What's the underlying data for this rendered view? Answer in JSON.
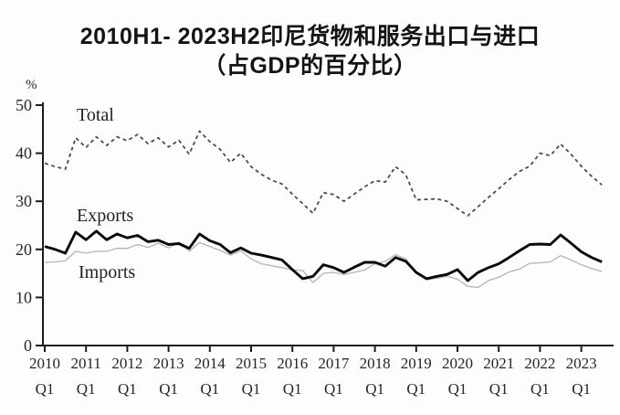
{
  "title": {
    "line1": "2010H1- 2023H2印尼货物和服务出口与进口",
    "line2": "（占GDP的百分比）"
  },
  "y_axis": {
    "unit": "%",
    "ticks": [
      "0",
      "10",
      "20",
      "30",
      "40",
      "50"
    ]
  },
  "x_axis": {
    "tick_years": [
      "2010",
      "2011",
      "2012",
      "2013",
      "2014",
      "2015",
      "2016",
      "2017",
      "2018",
      "2019",
      "2020",
      "2021",
      "2022",
      "2023"
    ],
    "tick_sublabel": "Q1"
  },
  "colors": {
    "title_text": "#141414",
    "axis": "#1c1c1c",
    "tick_text": "#262626",
    "total_line": "#4d4d4d",
    "exports_line": "#0a0a0a",
    "imports_line": "#b3b3b3",
    "background": "#fdfdfd"
  },
  "chart_data": {
    "type": "line",
    "title": "2010H1- 2023H2印尼货物和服务出口与进口（占GDP的百分比）",
    "xlabel": "",
    "ylabel": "%",
    "ylim": [
      0,
      50
    ],
    "grid": false,
    "frequency": "quarterly",
    "x_start": "2010 Q1",
    "x_end": "2023 H2",
    "x_tick_labels": [
      "2010 Q1",
      "2011 Q1",
      "2012 Q1",
      "2013 Q1",
      "2014 Q1",
      "2015 Q1",
      "2016 Q1",
      "2017 Q1",
      "2018 Q1",
      "2019 Q1",
      "2020 Q1",
      "2021 Q1",
      "2022 Q1",
      "2023 Q1"
    ],
    "series": [
      {
        "name": "Total",
        "line_style": "dashed",
        "color": "#4d4d4d",
        "values": [
          37.9,
          37.2,
          36.7,
          43.2,
          41.2,
          43.4,
          41.6,
          43.4,
          42.6,
          43.9,
          42.0,
          43.2,
          41.3,
          42.7,
          39.8,
          44.6,
          42.4,
          40.8,
          38.1,
          40.0,
          37.2,
          35.6,
          34.4,
          33.6,
          31.5,
          29.5,
          27.5,
          31.8,
          31.4,
          30.0,
          31.5,
          33.0,
          34.3,
          34.0,
          37.2,
          35.5,
          30.3,
          30.4,
          30.5,
          30.0,
          28.5,
          27.0,
          28.9,
          30.8,
          32.6,
          34.5,
          36.2,
          37.3,
          40.0,
          39.5,
          41.9,
          39.8,
          37.3,
          35.2,
          33.4
        ]
      },
      {
        "name": "Exports",
        "line_style": "solid-thick",
        "color": "#0a0a0a",
        "values": [
          20.6,
          20.0,
          19.2,
          23.6,
          22.0,
          23.8,
          22.0,
          23.2,
          22.4,
          22.9,
          21.6,
          21.9,
          21.0,
          21.2,
          20.2,
          23.2,
          21.8,
          21.0,
          19.3,
          20.3,
          19.2,
          18.8,
          18.3,
          17.8,
          15.8,
          13.9,
          14.4,
          16.8,
          16.2,
          15.2,
          16.3,
          17.3,
          17.3,
          16.5,
          18.3,
          17.5,
          15.2,
          13.9,
          14.4,
          14.8,
          15.8,
          13.5,
          15.2,
          16.2,
          17.0,
          18.3,
          19.7,
          21.0,
          21.1,
          21.0,
          23.0,
          21.3,
          19.5,
          18.3,
          17.4
        ]
      },
      {
        "name": "Imports",
        "line_style": "solid-thin",
        "color": "#b3b3b3",
        "values": [
          17.3,
          17.4,
          17.6,
          19.6,
          19.2,
          19.6,
          19.6,
          20.2,
          20.2,
          21.0,
          20.4,
          21.3,
          20.3,
          21.5,
          19.6,
          21.4,
          20.6,
          19.8,
          18.8,
          19.7,
          18.0,
          17.0,
          16.6,
          16.2,
          15.7,
          15.6,
          13.1,
          15.0,
          15.2,
          14.8,
          15.2,
          15.7,
          17.0,
          17.5,
          18.9,
          18.0,
          15.0,
          13.7,
          14.0,
          14.4,
          13.8,
          12.3,
          12.1,
          13.5,
          14.2,
          15.3,
          15.9,
          17.1,
          17.2,
          17.4,
          18.7,
          17.8,
          16.8,
          16.0,
          15.4
        ]
      }
    ],
    "legend_position": "inline-annotations"
  }
}
